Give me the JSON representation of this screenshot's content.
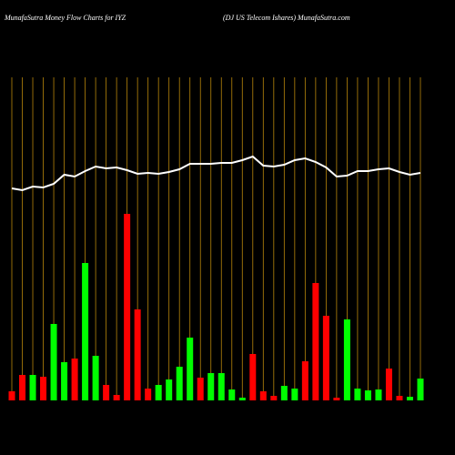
{
  "chart_data": {
    "type": "bar",
    "title": "MunafaSutra  Money Flow  Charts for IYZ",
    "subtitle": "(DJ US Telecom Ishares) MunafaSutra.com",
    "values": [
      10,
      28,
      28,
      26,
      84,
      42,
      46,
      151,
      49,
      17,
      6,
      205,
      100,
      13,
      17,
      23,
      37,
      69,
      25,
      30,
      30,
      12,
      3,
      51,
      10,
      5,
      16,
      13,
      43,
      129,
      93,
      3,
      89,
      13,
      11,
      12,
      35,
      5,
      4,
      24
    ],
    "colors": [
      "#ff0000",
      "#ff0000",
      "#00ff00",
      "#ff0000",
      "#00ff00",
      "#00ff00",
      "#ff0000",
      "#00ff00",
      "#00ff00",
      "#ff0000",
      "#ff0000",
      "#ff0000",
      "#ff0000",
      "#ff0000",
      "#00ff00",
      "#00ff00",
      "#00ff00",
      "#00ff00",
      "#ff0000",
      "#00ff00",
      "#00ff00",
      "#00ff00",
      "#00ff00",
      "#ff0000",
      "#ff0000",
      "#ff0000",
      "#00ff00",
      "#00ff00",
      "#ff0000",
      "#ff0000",
      "#ff0000",
      "#ff0000",
      "#00ff00",
      "#00ff00",
      "#00ff00",
      "#00ff00",
      "#ff0000",
      "#ff0000",
      "#00ff00",
      "#00ff00"
    ],
    "line": {
      "color": "#ffffff",
      "values": [
        233,
        231,
        235,
        234,
        238,
        248,
        246,
        252,
        257,
        255,
        256,
        253,
        249,
        250,
        249,
        251,
        254,
        260,
        260,
        260,
        261,
        261,
        264,
        268,
        258,
        257,
        259,
        264,
        266,
        262,
        256,
        246,
        247,
        252,
        252,
        254,
        255,
        251,
        248,
        250
      ]
    },
    "grid_color": "#b8860b"
  }
}
